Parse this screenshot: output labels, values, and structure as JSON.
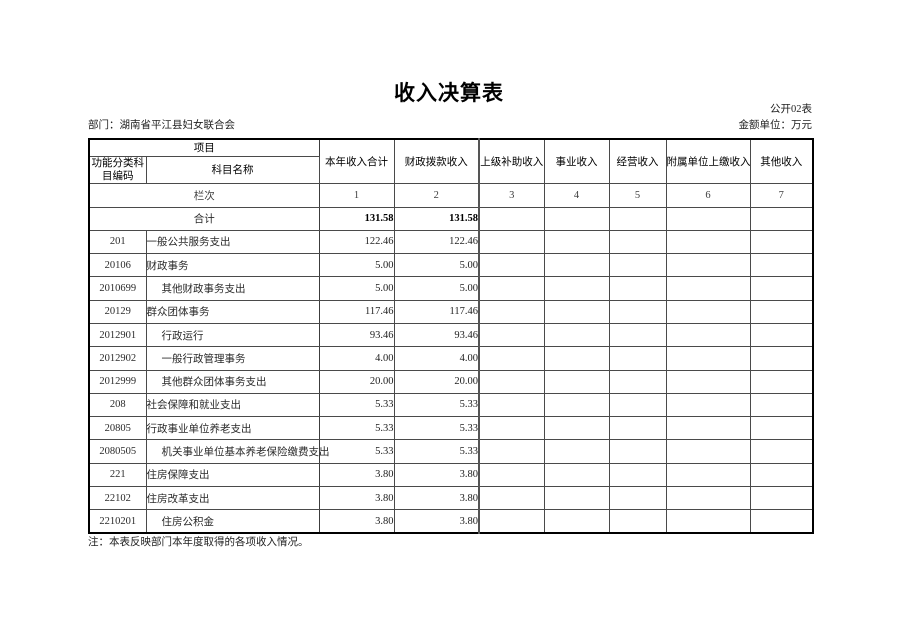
{
  "page": {
    "title": "收入决算表",
    "sheet_label": "公开02表",
    "department_label": "部门：湖南省平江县妇女联合会",
    "unit_label": "金额单位：万元",
    "footnote": "注：本表反映部门本年度取得的各项收入情况。"
  },
  "table": {
    "header": {
      "project_label": "项目",
      "code_label": "功能分类科目编码",
      "subject_label": "科目名称",
      "income_columns": [
        "本年收入合计",
        "财政拨款收入",
        "上级补助收入",
        "事业收入",
        "经营收入",
        "附属单位上缴收入",
        "其他收入"
      ]
    },
    "lanci": {
      "label": "栏次",
      "numbers": [
        "1",
        "2",
        "3",
        "4",
        "5",
        "6",
        "7"
      ]
    },
    "total_row": {
      "label": "合计",
      "values": [
        "131.58",
        "131.58",
        "",
        "",
        "",
        "",
        ""
      ]
    },
    "rows": [
      {
        "code": "201",
        "name": "一般公共服务支出",
        "indent": 0,
        "values": [
          "122.46",
          "122.46",
          "",
          "",
          "",
          "",
          ""
        ]
      },
      {
        "code": "20106",
        "name": "财政事务",
        "indent": 0,
        "values": [
          "5.00",
          "5.00",
          "",
          "",
          "",
          "",
          ""
        ]
      },
      {
        "code": "2010699",
        "name": "其他财政事务支出",
        "indent": 1,
        "values": [
          "5.00",
          "5.00",
          "",
          "",
          "",
          "",
          ""
        ]
      },
      {
        "code": "20129",
        "name": "群众团体事务",
        "indent": 0,
        "values": [
          "117.46",
          "117.46",
          "",
          "",
          "",
          "",
          ""
        ]
      },
      {
        "code": "2012901",
        "name": "行政运行",
        "indent": 1,
        "values": [
          "93.46",
          "93.46",
          "",
          "",
          "",
          "",
          ""
        ]
      },
      {
        "code": "2012902",
        "name": "一般行政管理事务",
        "indent": 1,
        "values": [
          "4.00",
          "4.00",
          "",
          "",
          "",
          "",
          ""
        ]
      },
      {
        "code": "2012999",
        "name": "其他群众团体事务支出",
        "indent": 1,
        "values": [
          "20.00",
          "20.00",
          "",
          "",
          "",
          "",
          ""
        ]
      },
      {
        "code": "208",
        "name": "社会保障和就业支出",
        "indent": 0,
        "values": [
          "5.33",
          "5.33",
          "",
          "",
          "",
          "",
          ""
        ]
      },
      {
        "code": "20805",
        "name": "行政事业单位养老支出",
        "indent": 0,
        "values": [
          "5.33",
          "5.33",
          "",
          "",
          "",
          "",
          ""
        ]
      },
      {
        "code": "2080505",
        "name": "机关事业单位基本养老保险缴费支出",
        "indent": 1,
        "values": [
          "5.33",
          "5.33",
          "",
          "",
          "",
          "",
          ""
        ]
      },
      {
        "code": "221",
        "name": "住房保障支出",
        "indent": 0,
        "values": [
          "3.80",
          "3.80",
          "",
          "",
          "",
          "",
          ""
        ]
      },
      {
        "code": "22102",
        "name": "住房改革支出",
        "indent": 0,
        "values": [
          "3.80",
          "3.80",
          "",
          "",
          "",
          "",
          ""
        ]
      },
      {
        "code": "2210201",
        "name": "住房公积金",
        "indent": 1,
        "values": [
          "3.80",
          "3.80",
          "",
          "",
          "",
          "",
          ""
        ]
      }
    ]
  }
}
